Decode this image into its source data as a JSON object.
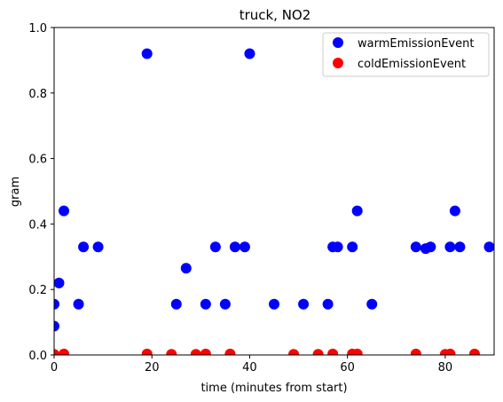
{
  "chart_data": {
    "type": "scatter",
    "title": "truck, NO2",
    "xlabel": "time (minutes from start)",
    "ylabel": "gram",
    "xlim": [
      0,
      90
    ],
    "ylim": [
      0,
      1.0
    ],
    "x_ticks": [
      0,
      20,
      40,
      60,
      80
    ],
    "x_tick_labels": [
      "0",
      "20",
      "40",
      "60",
      "80"
    ],
    "y_ticks": [
      0,
      0.2,
      0.4,
      0.6,
      0.8,
      1.0
    ],
    "y_tick_labels": [
      "0.0",
      "0.2",
      "0.4",
      "0.6",
      "0.8",
      "1.0"
    ],
    "grid": false,
    "legend_position": "top-right",
    "series": [
      {
        "name": "warmEmissionEvent",
        "color": "#0000ff",
        "points": [
          [
            0,
            0.155
          ],
          [
            0,
            0.088
          ],
          [
            1,
            0.22
          ],
          [
            2,
            0.44
          ],
          [
            5,
            0.155
          ],
          [
            6,
            0.33
          ],
          [
            9,
            0.33
          ],
          [
            19,
            0.92
          ],
          [
            25,
            0.155
          ],
          [
            27,
            0.265
          ],
          [
            31,
            0.155
          ],
          [
            33,
            0.33
          ],
          [
            35,
            0.155
          ],
          [
            37,
            0.33
          ],
          [
            39,
            0.33
          ],
          [
            40,
            0.92
          ],
          [
            45,
            0.155
          ],
          [
            51,
            0.155
          ],
          [
            56,
            0.155
          ],
          [
            57,
            0.33
          ],
          [
            58,
            0.33
          ],
          [
            61,
            0.33
          ],
          [
            62,
            0.44
          ],
          [
            65,
            0.155
          ],
          [
            74,
            0.33
          ],
          [
            76,
            0.325
          ],
          [
            77,
            0.33
          ],
          [
            81,
            0.33
          ],
          [
            82,
            0.44
          ],
          [
            83,
            0.33
          ],
          [
            89,
            0.33
          ]
        ]
      },
      {
        "name": "coldEmissionEvent",
        "color": "#ff0000",
        "points": [
          [
            0,
            0.002
          ],
          [
            2,
            0.003
          ],
          [
            19,
            0.003
          ],
          [
            24,
            0.002
          ],
          [
            29,
            0.002
          ],
          [
            31,
            0.003
          ],
          [
            36,
            0.003
          ],
          [
            49,
            0.002
          ],
          [
            54,
            0.002
          ],
          [
            57,
            0.003
          ],
          [
            61,
            0.003
          ],
          [
            62,
            0.003
          ],
          [
            74,
            0.003
          ],
          [
            80,
            0.002
          ],
          [
            81,
            0.003
          ],
          [
            86,
            0.003
          ]
        ]
      }
    ]
  }
}
